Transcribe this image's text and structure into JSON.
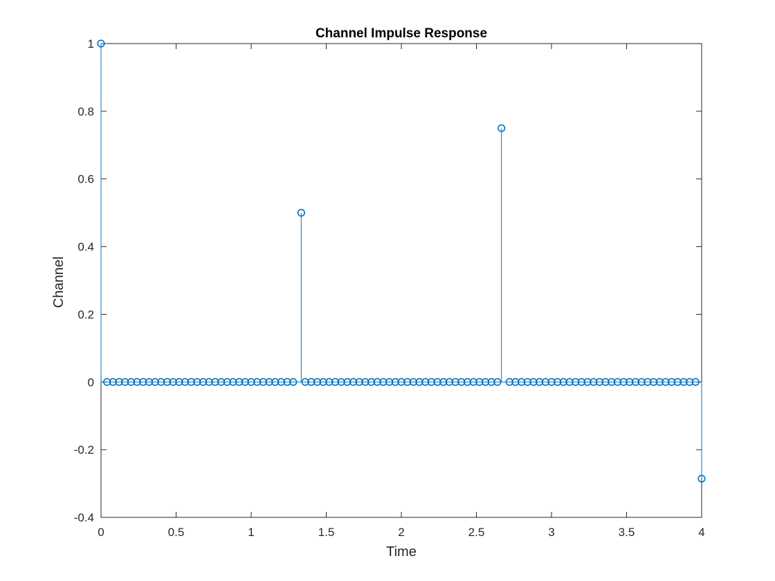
{
  "chart_data": {
    "type": "stem",
    "title": "Channel Impulse Response",
    "xlabel": "Time",
    "ylabel": "Channel",
    "xlim": [
      0,
      4
    ],
    "ylim": [
      -0.4,
      1
    ],
    "x_ticks": [
      "0",
      "0.5",
      "1",
      "1.5",
      "2",
      "2.5",
      "3",
      "3.5",
      "4"
    ],
    "y_ticks": [
      "-0.4",
      "-0.2",
      "0",
      "0.2",
      "0.4",
      "0.6",
      "0.8",
      "1"
    ],
    "grid": false,
    "box": true,
    "series_color": "#0072BD",
    "sample_step": 0.04,
    "sample_count": 101,
    "nonzero_samples": [
      {
        "x": 0,
        "y": 1
      },
      {
        "x": 1.3333,
        "y": 0.5
      },
      {
        "x": 2.6667,
        "y": 0.75
      },
      {
        "x": 4,
        "y": -0.2857
      }
    ]
  }
}
